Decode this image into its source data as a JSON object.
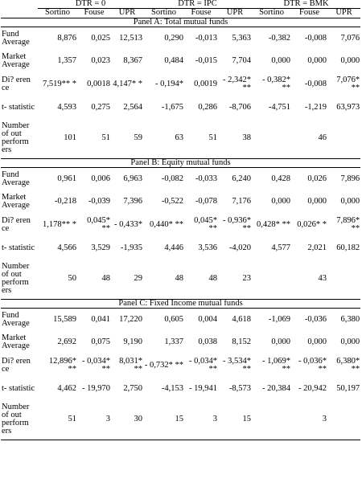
{
  "headers": {
    "groups": [
      "DTR = 0",
      "DTR = IPC",
      "DTR = BMK"
    ],
    "measures": [
      "Sortino",
      "Fouse",
      "UPR",
      "Sortino",
      "Fouse",
      "UPR",
      "Sortino",
      "Fouse",
      "UPR"
    ]
  },
  "panels": [
    {
      "title": "Panel A: Total mutual funds",
      "rows": [
        {
          "label": "Fund Average",
          "values": [
            "8,876",
            "0,025",
            "12,513",
            "0,290",
            "-0,013",
            "5,363",
            "-0,382",
            "-0,008",
            "7,076"
          ]
        },
        {
          "label": "Market Average",
          "values": [
            "1,357",
            "0,023",
            "8,367",
            "0,484",
            "-0,015",
            "7,704",
            "0,000",
            "0,000",
            "0,000"
          ]
        },
        {
          "label": "Di? eren ce",
          "values": [
            "7,519** *",
            "0,0018",
            "4,147* *",
            "- 0,194*",
            "0,0019",
            "- 2,342* **",
            "- 0,382* **",
            "-0,008",
            "7,076* **"
          ]
        },
        {
          "label": "t- statistic",
          "values": [
            "4,593",
            "0,275",
            "2,564",
            "-1,675",
            "0,286",
            "-8,706",
            "-4,751",
            "-1,219",
            "63,973"
          ]
        },
        {
          "label": "Number of out perform ers",
          "values": [
            "101",
            "51",
            "59",
            "63",
            "51",
            "38",
            "",
            "46",
            ""
          ]
        }
      ]
    },
    {
      "title": "Panel B: Equity mutual funds",
      "rows": [
        {
          "label": "Fund Average",
          "values": [
            "0,961",
            "0,006",
            "6,963",
            "-0,082",
            "-0,033",
            "6,240",
            "0,428",
            "0,026",
            "7,896"
          ]
        },
        {
          "label": "Market Average",
          "values": [
            "-0,218",
            "-0,039",
            "7,396",
            "-0,522",
            "-0,078",
            "7,176",
            "0,000",
            "0,000",
            "0,000"
          ]
        },
        {
          "label": "Di? eren ce",
          "values": [
            "1,178** *",
            "0,045* **",
            "- 0,433*",
            "0,440* **",
            "0,045* **",
            "- 0,936* **",
            "0,428* **",
            "0,026* *",
            "7,896* **"
          ]
        },
        {
          "label": "t- statistic",
          "values": [
            "4,566",
            "3,529",
            "-1,935",
            "4,446",
            "3,536",
            "-4,020",
            "4,577",
            "2,021",
            "60,182"
          ]
        },
        {
          "label": "Number of out perform ers",
          "values": [
            "50",
            "48",
            "29",
            "48",
            "48",
            "23",
            "",
            "43",
            ""
          ]
        }
      ]
    },
    {
      "title": "Panel C: Fixed Income mutual funds",
      "rows": [
        {
          "label": "Fund Average",
          "values": [
            "15,589",
            "0,041",
            "17,220",
            "0,605",
            "0,004",
            "4,618",
            "-1,069",
            "-0,036",
            "6,380"
          ]
        },
        {
          "label": "Market Average",
          "values": [
            "2,692",
            "0,075",
            "9,190",
            "1,337",
            "0,038",
            "8,152",
            "0,000",
            "0,000",
            "0,000"
          ]
        },
        {
          "label": "Di? eren ce",
          "values": [
            "12,896* **",
            "- 0,034* **",
            "8,031* **",
            "- 0,732* **",
            "- 0,034* **",
            "- 3,534* **",
            "- 1,069* **",
            "- 0,036* **",
            "6,380* **"
          ]
        },
        {
          "label": "t- statistic",
          "values": [
            "4,462",
            "- 19,970",
            "2,750",
            "-4,153",
            "- 19,941",
            "-8,573",
            "- 20,384",
            "- 20,942",
            "50,197"
          ]
        },
        {
          "label": "Number of out perform ers",
          "values": [
            "51",
            "3",
            "30",
            "15",
            "3",
            "15",
            "",
            "3",
            ""
          ]
        }
      ]
    }
  ]
}
